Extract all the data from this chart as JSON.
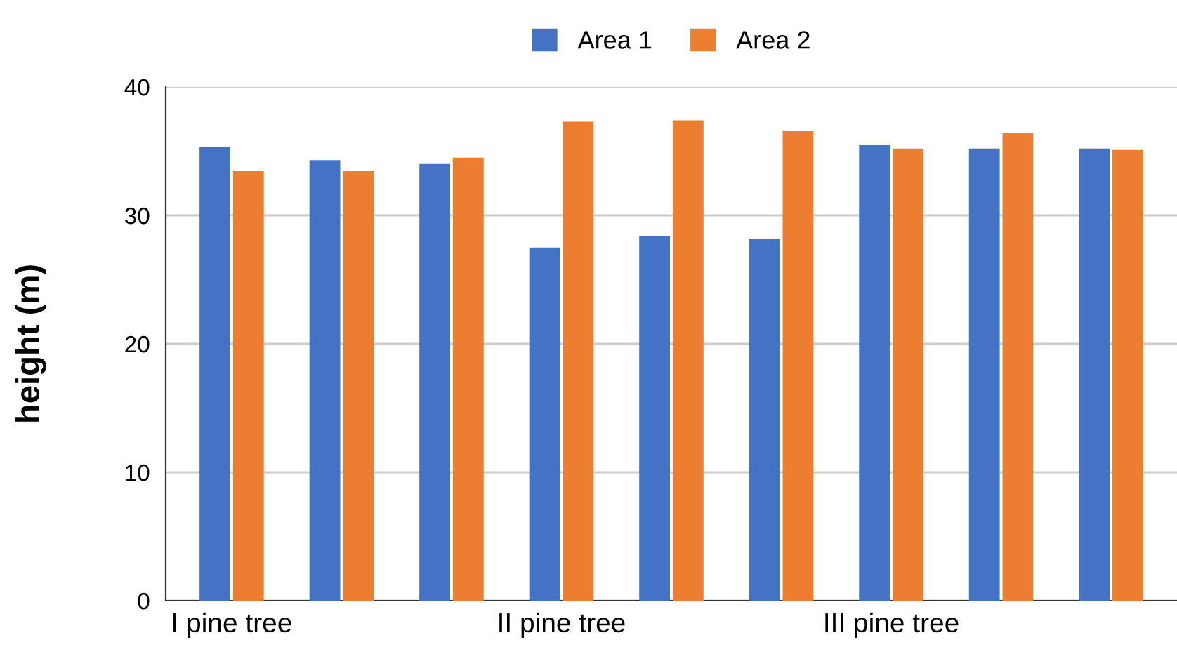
{
  "chart_data": {
    "type": "bar",
    "ylabel": "height (m)",
    "categories": [
      "I pine tree",
      null,
      null,
      "II pine tree",
      null,
      null,
      "III pine tree",
      null,
      null
    ],
    "series": [
      {
        "name": "Area 1",
        "color": "#4472c4",
        "values": [
          35.3,
          34.3,
          34.0,
          27.5,
          28.4,
          28.2,
          35.5,
          35.2,
          35.2
        ]
      },
      {
        "name": "Area 2",
        "color": "#ed7d31",
        "values": [
          33.5,
          33.5,
          34.5,
          37.3,
          37.4,
          36.6,
          35.2,
          36.4,
          35.1
        ]
      }
    ],
    "ylim": [
      0,
      40
    ],
    "yticks": [
      0,
      10,
      20,
      30,
      40
    ],
    "grid": "y",
    "legend": "top"
  }
}
